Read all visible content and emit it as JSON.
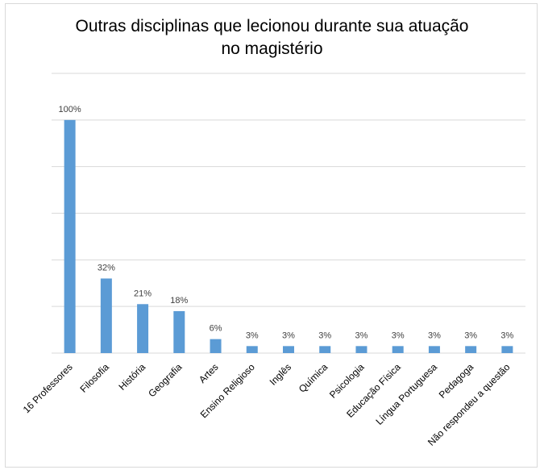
{
  "chart_data": {
    "type": "bar",
    "title_lines": [
      "Outras disciplinas que lecionou durante sua atuação",
      "no magistério"
    ],
    "categories": [
      "16 Professores",
      "Filosofia",
      "História",
      "Geografia",
      "Artes",
      "Ensino Religioso",
      "Inglês",
      "Química",
      "Psicologia",
      "Educação Física",
      "Língua Portuguesa",
      "Pedagoga",
      "Não respondeu a questão"
    ],
    "values": [
      100,
      32,
      21,
      18,
      6,
      3,
      3,
      3,
      3,
      3,
      3,
      3,
      3
    ],
    "data_labels": [
      "100%",
      "32%",
      "21%",
      "18%",
      "6%",
      "3%",
      "3%",
      "3%",
      "3%",
      "3%",
      "3%",
      "3%",
      "3%"
    ],
    "ylim": [
      0,
      120
    ],
    "y_grid_step": 20,
    "grid": true,
    "legend": "none",
    "bar_color": "#5b9bd5",
    "grid_color": "#d9d9d9"
  }
}
